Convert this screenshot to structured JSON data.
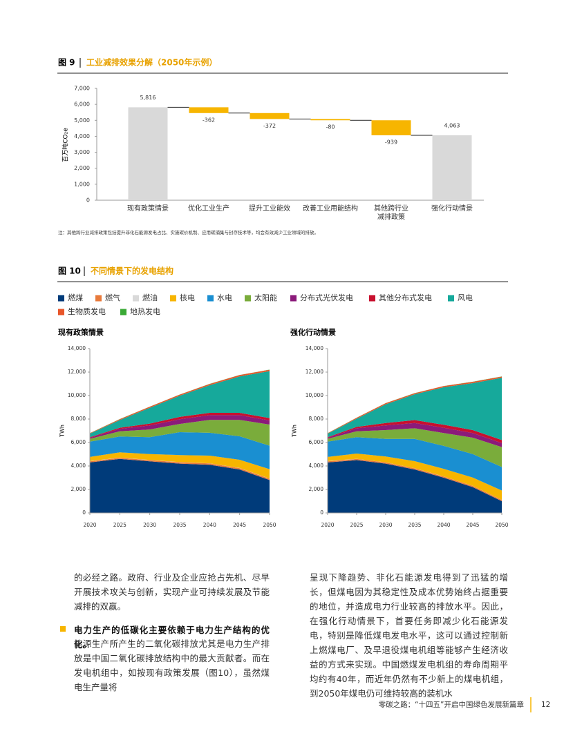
{
  "figure9": {
    "number": "图 9",
    "title": "工业减排效果分解（2050年示例）"
  },
  "note": "注：其他跨行业减排政策包括提升非化石能源发电占比、实施碳价机制、应用碳捕集与封存技术等，均会有效减少工业领域的排放。",
  "figure10": {
    "number": "图 10",
    "title": "不同情景下的发电结构"
  },
  "body": {
    "left_intro": "的必经之路。政府、行业及企业应抢占先机、尽早开展技术攻关与创新，实现产业可持续发展及节能减排的双赢。",
    "left_heading": "电力生产的低碳化主要依赖于电力生产结构的优化。",
    "left_text": "能源生产所产生的二氧化碳排放尤其是电力生产排放是中国二氧化碳排放结构中的最大贡献者。而在发电机组中，如按现有政策发展（图10），虽然煤电生产量将",
    "right_text": "呈现下降趋势、非化石能源发电得到了迅猛的增长，但煤电因为其稳定性及成本优势始终占据重要的地位，并造成电力行业较高的排放水平。因此，在强化行动情景下，首要任务即减少化石能源发电，特别是降低煤电发电水平，这可以通过控制新上燃煤电厂、及早退役煤电机组等能够产生经济收益的方式来实现。中国燃煤发电机组的寿命周期平均约有40年，而近年仍然有不少新上的煤电机组，到2050年煤电仍可维持较高的装机水"
  },
  "footer": {
    "text": "零碳之路：“十四五”开启中国绿色发展新篇章",
    "page": "12"
  },
  "chart_data": [
    {
      "type": "waterfall",
      "ylabel": "百万吨CO₂e",
      "categories": [
        "现有政策情景",
        "优化工业生产",
        "提升工业能效",
        "改善工业用能结构",
        "其他跨行业\n减排政策",
        "强化行动情景"
      ],
      "values": [
        5816,
        -362,
        -372,
        -80,
        -939,
        4063
      ],
      "value_labels": [
        "5,816",
        "-362",
        "-372",
        "-80",
        "-939",
        "4,063"
      ],
      "measure": [
        "total",
        "relative",
        "relative",
        "relative",
        "relative",
        "total"
      ],
      "colors": [
        "#d9d9d9",
        "#f7b500",
        "#f7b500",
        "#f7b500",
        "#f7b500",
        "#d9d9d9"
      ],
      "ylim": [
        0,
        7000
      ],
      "yticks": [
        0,
        {
          "value": 1000,
          "label": "1,000"
        },
        {
          "value": 2000,
          "label": "2,000"
        },
        {
          "value": 3000,
          "label": "3,000"
        },
        {
          "value": 4000,
          "label": "4,000"
        },
        {
          "value": 5000,
          "label": "5,000"
        },
        {
          "value": 6000,
          "label": "6,000"
        },
        {
          "value": 7000,
          "label": "7,000"
        }
      ]
    },
    {
      "type": "stacked_area",
      "title": "现有政策情景",
      "ylabel": "TWh",
      "x": [
        2020,
        2025,
        2030,
        2035,
        2040,
        2045,
        2050
      ],
      "xlim": [
        2020,
        2050
      ],
      "xticks": [
        2020,
        2025,
        2030,
        2035,
        2040,
        2045,
        2050
      ],
      "ylim": [
        0,
        14000
      ],
      "yticks": [
        0,
        {
          "value": 2000,
          "label": "2,000"
        },
        {
          "value": 4000,
          "label": "4,000"
        },
        {
          "value": 6000,
          "label": "6,000"
        },
        {
          "value": 8000,
          "label": "8,000"
        },
        {
          "value": 10000,
          "label": "10,000"
        },
        {
          "value": 12000,
          "label": "12,000"
        },
        {
          "value": 14000,
          "label": "14,000"
        }
      ],
      "series": [
        {
          "name": "燃煤",
          "color": "#003b7a",
          "values": [
            4300,
            4600,
            4400,
            4200,
            4100,
            3700,
            2800
          ]
        },
        {
          "name": "燃气",
          "color": "#e87a3b",
          "values": [
            100,
            100,
            100,
            120,
            120,
            120,
            120
          ]
        },
        {
          "name": "燃油",
          "color": "#d9d9d9",
          "values": [
            20,
            10,
            10,
            10,
            10,
            10,
            10
          ]
        },
        {
          "name": "核电",
          "color": "#f7b500",
          "values": [
            350,
            450,
            500,
            600,
            650,
            700,
            800
          ]
        },
        {
          "name": "水电",
          "color": "#1a8fd1",
          "values": [
            1300,
            1350,
            1450,
            1950,
            1950,
            2000,
            2000
          ]
        },
        {
          "name": "太阳能",
          "color": "#7aac3b",
          "values": [
            250,
            450,
            650,
            700,
            1100,
            1400,
            1800
          ]
        },
        {
          "name": "分布式光伏发电",
          "color": "#8b1a7a",
          "values": [
            80,
            200,
            350,
            400,
            400,
            400,
            350
          ]
        },
        {
          "name": "其他分布式发电",
          "color": "#c8102e",
          "values": [
            50,
            100,
            150,
            200,
            200,
            200,
            200
          ]
        },
        {
          "name": "风电",
          "color": "#16a99b",
          "values": [
            300,
            650,
            1350,
            1800,
            2350,
            3100,
            4000
          ]
        },
        {
          "name": "生物质发电",
          "color": "#e8562a",
          "values": [
            40,
            80,
            90,
            100,
            110,
            120,
            120
          ]
        },
        {
          "name": "地热发电",
          "color": "#3aa935",
          "values": [
            10,
            10,
            10,
            10,
            10,
            10,
            10
          ]
        }
      ]
    },
    {
      "type": "stacked_area",
      "title": "强化行动情景",
      "ylabel": "TWh",
      "x": [
        2020,
        2025,
        2030,
        2035,
        2040,
        2045,
        2050
      ],
      "xlim": [
        2020,
        2050
      ],
      "xticks": [
        2020,
        2025,
        2030,
        2035,
        2040,
        2045,
        2050
      ],
      "ylim": [
        0,
        14000
      ],
      "yticks": [
        0,
        {
          "value": 2000,
          "label": "2,000"
        },
        {
          "value": 4000,
          "label": "4,000"
        },
        {
          "value": 6000,
          "label": "6,000"
        },
        {
          "value": 8000,
          "label": "8,000"
        },
        {
          "value": 10000,
          "label": "10,000"
        },
        {
          "value": 12000,
          "label": "12,000"
        },
        {
          "value": 14000,
          "label": "14,000"
        }
      ],
      "series": [
        {
          "name": "燃煤",
          "color": "#003b7a",
          "values": [
            4300,
            4500,
            4200,
            3700,
            3000,
            2200,
            1000
          ]
        },
        {
          "name": "燃气",
          "color": "#e87a3b",
          "values": [
            100,
            100,
            100,
            100,
            100,
            100,
            100
          ]
        },
        {
          "name": "燃油",
          "color": "#d9d9d9",
          "values": [
            20,
            10,
            10,
            10,
            10,
            10,
            10
          ]
        },
        {
          "name": "核电",
          "color": "#f7b500",
          "values": [
            350,
            450,
            500,
            600,
            650,
            700,
            800
          ]
        },
        {
          "name": "水电",
          "color": "#1a8fd1",
          "values": [
            1300,
            1400,
            1500,
            1900,
            1950,
            2000,
            2000
          ]
        },
        {
          "name": "太阳能",
          "color": "#7aac3b",
          "values": [
            250,
            500,
            750,
            900,
            1100,
            1400,
            1700
          ]
        },
        {
          "name": "分布式光伏发电",
          "color": "#8b1a7a",
          "values": [
            80,
            250,
            400,
            450,
            450,
            400,
            350
          ]
        },
        {
          "name": "其他分布式发电",
          "color": "#c8102e",
          "values": [
            50,
            120,
            200,
            250,
            250,
            250,
            250
          ]
        },
        {
          "name": "风电",
          "color": "#16a99b",
          "values": [
            300,
            700,
            1600,
            2200,
            3200,
            4000,
            5300
          ]
        },
        {
          "name": "生物质发电",
          "color": "#e8562a",
          "values": [
            40,
            80,
            90,
            90,
            100,
            110,
            110
          ]
        },
        {
          "name": "地热发电",
          "color": "#3aa935",
          "values": [
            10,
            10,
            10,
            10,
            10,
            10,
            10
          ]
        }
      ]
    }
  ]
}
